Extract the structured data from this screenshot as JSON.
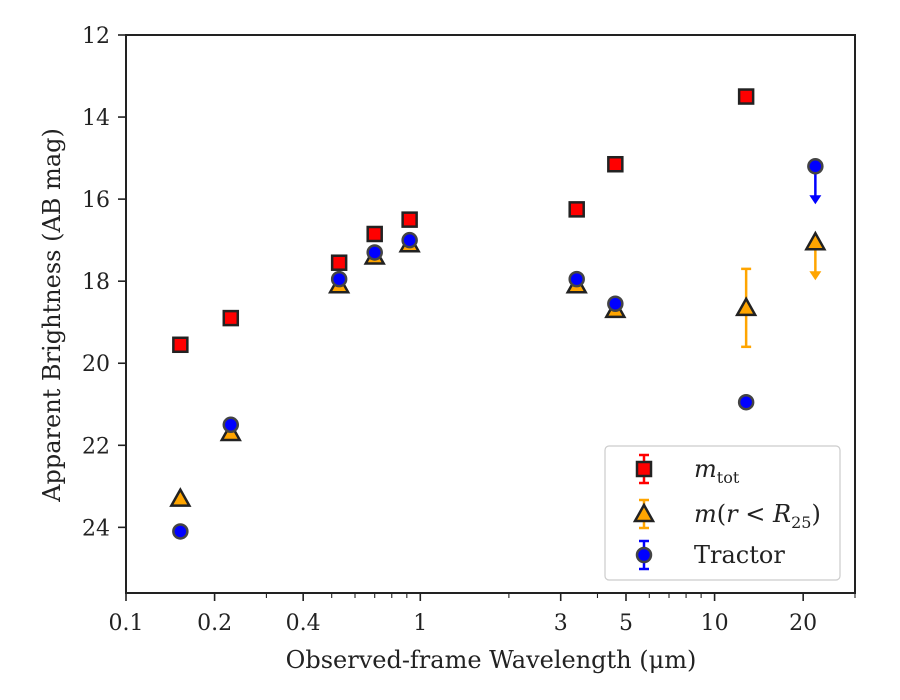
{
  "chart_data": {
    "type": "scatter",
    "xlabel": "Observed-frame Wavelength (μm)",
    "ylabel": "Apparent Brightness (AB mag)",
    "x_scale": "log",
    "xlim": [
      0.1,
      30
    ],
    "ylim": [
      25.6,
      12
    ],
    "y_inverted": true,
    "x_ticks": [
      0.1,
      0.2,
      0.4,
      1,
      3,
      5,
      10,
      20
    ],
    "x_tick_labels": [
      "0.1",
      "0.2",
      "0.4",
      "1",
      "3",
      "5",
      "10",
      "20"
    ],
    "y_ticks": [
      12,
      14,
      16,
      18,
      20,
      22,
      24
    ],
    "y_tick_labels": [
      "12",
      "14",
      "16",
      "18",
      "20",
      "22",
      "24"
    ],
    "grid": false,
    "legend_position": "lower right",
    "series": [
      {
        "name": "m_tot",
        "marker": "square",
        "color": "#ff0000",
        "edge_color": "#222222",
        "points": [
          {
            "x": 0.153,
            "y": 19.55
          },
          {
            "x": 0.227,
            "y": 18.9
          },
          {
            "x": 0.53,
            "y": 17.55
          },
          {
            "x": 0.7,
            "y": 16.85
          },
          {
            "x": 0.92,
            "y": 16.5
          },
          {
            "x": 3.4,
            "y": 16.25
          },
          {
            "x": 4.6,
            "y": 15.15
          },
          {
            "x": 12.8,
            "y": 13.5
          }
        ]
      },
      {
        "name": "m(r < R25)",
        "marker": "triangle",
        "color": "#ffa500",
        "edge_color": "#222222",
        "points": [
          {
            "x": 0.153,
            "y": 23.3
          },
          {
            "x": 0.227,
            "y": 21.7
          },
          {
            "x": 0.53,
            "y": 18.1
          },
          {
            "x": 0.7,
            "y": 17.4
          },
          {
            "x": 0.92,
            "y": 17.1
          },
          {
            "x": 3.4,
            "y": 18.1
          },
          {
            "x": 4.6,
            "y": 18.7
          },
          {
            "x": 12.8,
            "y": 18.65,
            "err": 0.95
          },
          {
            "x": 22,
            "y": 17.05,
            "upper_limit": true
          }
        ]
      },
      {
        "name": "Tractor",
        "marker": "circle",
        "color": "#0000ff",
        "edge_color": "#444444",
        "points": [
          {
            "x": 0.153,
            "y": 24.1
          },
          {
            "x": 0.227,
            "y": 21.5
          },
          {
            "x": 0.53,
            "y": 17.95
          },
          {
            "x": 0.7,
            "y": 17.3
          },
          {
            "x": 0.92,
            "y": 17.0
          },
          {
            "x": 3.4,
            "y": 17.95
          },
          {
            "x": 4.6,
            "y": 18.55
          },
          {
            "x": 12.8,
            "y": 20.95
          },
          {
            "x": 22,
            "y": 15.2,
            "upper_limit": true
          }
        ]
      }
    ]
  }
}
